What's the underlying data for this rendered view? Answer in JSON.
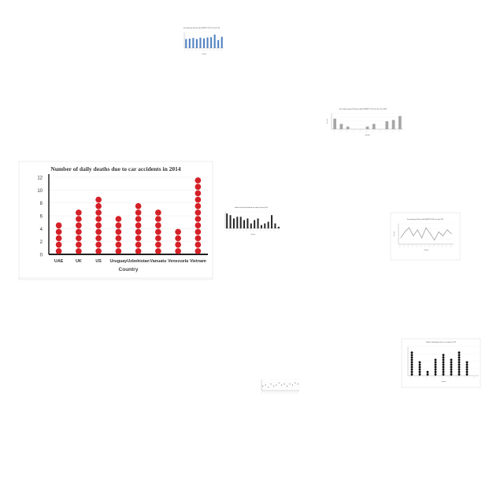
{
  "chart_data": [
    {
      "type": "dot",
      "title": "Number of daily deaths due to car accidents in 2014",
      "xlabel": "Country",
      "ylabel": "",
      "categories": [
        "UAE",
        "UK",
        "US",
        "Uruguay",
        "Uzbekistan",
        "Vanuatu",
        "Venezuela",
        "Vietnam"
      ],
      "values": [
        5,
        7,
        9,
        6,
        8,
        7,
        4,
        12
      ],
      "ylim": [
        0,
        12
      ],
      "yticks": [
        0,
        2,
        4,
        6,
        8,
        10,
        12
      ],
      "marker_color": "#d42027"
    },
    {
      "type": "bar",
      "title": "Sex ratio by age (100 year olds) (UNWPP, 2017) in the Year 1990",
      "xlabel": "Country",
      "ylabel": "",
      "categories": [
        "c1",
        "c2",
        "c3",
        "c4",
        "c5",
        "c6",
        "c7",
        "c8",
        "c9",
        "c10",
        "c11"
      ],
      "values": [
        4,
        4.2,
        4.5,
        4,
        4.6,
        4.3,
        4.7,
        4.8,
        6,
        3.5,
        5
      ],
      "ylim": [
        0,
        7
      ],
      "bar_color": "#4f7fbf"
    },
    {
      "type": "bar",
      "title": "Sex ratio by age (100 year olds) (UNWPP, 2017) in the Year 1990",
      "xlabel": "Countries",
      "ylabel": "Sex ratio",
      "categories": [
        "c1",
        "c2",
        "c3",
        "c4",
        "c5",
        "c6",
        "c7",
        "c8",
        "c9",
        "c10",
        "c11"
      ],
      "values": [
        4,
        2,
        1,
        0,
        0,
        1,
        2,
        0,
        3,
        3.5,
        5
      ],
      "ylim": [
        0,
        6
      ],
      "bar_color": "#a6a6a6"
    },
    {
      "type": "bar",
      "title": "Number of fossil fuel production per capita in the year 2010",
      "xlabel": "Country",
      "ylabel": "",
      "categories": [
        "c1",
        "c2",
        "c3",
        "c4",
        "c5",
        "c6",
        "c7",
        "c8",
        "c9",
        "c10",
        "c11",
        "c12",
        "c13",
        "c14",
        "c15",
        "c16"
      ],
      "values": [
        9,
        8,
        6,
        7,
        7,
        5,
        6,
        3,
        5,
        6,
        2,
        3,
        4,
        8,
        3,
        1
      ],
      "ylim": [
        0,
        10
      ],
      "bar_color": "#222222"
    },
    {
      "type": "line",
      "title": "Sex ratio by age (100 year olds) (UNWPP, 2017) in the year 1990",
      "xlabel": "Country",
      "ylabel": "Sex ratio",
      "categories": [
        "c1",
        "c2",
        "c3",
        "c4",
        "c5",
        "c6",
        "c7",
        "c8",
        "c9",
        "c10",
        "c11",
        "c12",
        "c13"
      ],
      "values": [
        3,
        6,
        8,
        4,
        7,
        3,
        8,
        5,
        2,
        6,
        4,
        7,
        5
      ],
      "ylim": [
        0,
        10
      ],
      "line_color": "#a0a0a0"
    },
    {
      "type": "dot",
      "title": "Number of daily deaths due to car accidents in 2014",
      "xlabel": "Country",
      "ylabel": "",
      "categories": [
        "c1",
        "c2",
        "c3",
        "c4",
        "c5",
        "c6",
        "c7",
        "c8",
        "c9"
      ],
      "values": [
        10,
        6,
        2,
        7,
        9,
        7,
        10,
        6,
        0
      ],
      "ylim": [
        0,
        12
      ],
      "marker_color": "#111111"
    },
    {
      "type": "scatter",
      "title": "",
      "xlabel": "",
      "ylabel": "",
      "x": [
        1,
        2,
        3,
        4,
        5,
        6,
        7,
        8,
        9,
        10,
        11,
        12,
        13,
        14
      ],
      "y": [
        4,
        5,
        3,
        6,
        4,
        5,
        7,
        5,
        6,
        4,
        6,
        5,
        7,
        6
      ],
      "ylim": [
        0,
        10
      ],
      "marker_color": "#777777"
    }
  ]
}
